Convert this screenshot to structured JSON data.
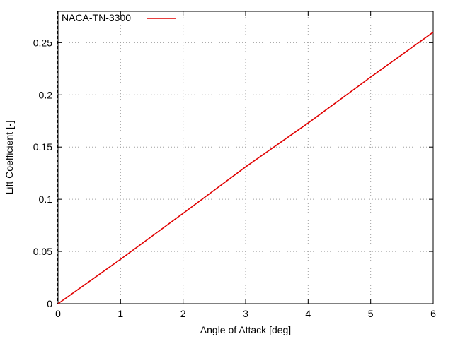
{
  "chart_data": {
    "type": "line",
    "title": "",
    "xlabel": "Angle of Attack [deg]",
    "ylabel": "Lift Coefficient [-]",
    "xlim": [
      0,
      6
    ],
    "ylim": [
      0,
      0.28
    ],
    "x_ticks": [
      0,
      1,
      2,
      3,
      4,
      5,
      6
    ],
    "x_tick_labels": [
      "0",
      "1",
      "2",
      "3",
      "4",
      "5",
      "6"
    ],
    "y_ticks": [
      0,
      0.05,
      0.1,
      0.15,
      0.2,
      0.25
    ],
    "y_tick_labels": [
      "0",
      "0.05",
      "0.1",
      "0.15",
      "0.2",
      "0.25"
    ],
    "grid": true,
    "legend_position": "top-left",
    "series": [
      {
        "name": "NACA-TN-3300",
        "color": "#e00000",
        "x": [
          0,
          1,
          2,
          3,
          4,
          5,
          6
        ],
        "y": [
          0,
          0.0425,
          0.0865,
          0.131,
          0.173,
          0.217,
          0.26
        ]
      }
    ]
  }
}
